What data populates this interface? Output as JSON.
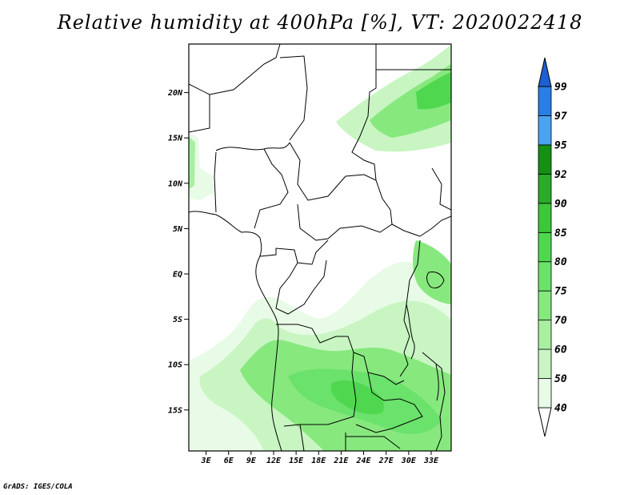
{
  "title": "Relative humidity at 400hPa [%], VT: 2020022418",
  "credit": "GrADS: IGES/COLA",
  "map": {
    "lat_labels": [
      {
        "lat": 20,
        "label": "20N"
      },
      {
        "lat": 15,
        "label": "15N"
      },
      {
        "lat": 10,
        "label": "10N"
      },
      {
        "lat": 5,
        "label": "5N"
      },
      {
        "lat": 0,
        "label": "EQ"
      },
      {
        "lat": -5,
        "label": "5S"
      },
      {
        "lat": -10,
        "label": "10S"
      },
      {
        "lat": -15,
        "label": "15S"
      }
    ],
    "lon_labels": [
      {
        "lon": 3,
        "label": "3E"
      },
      {
        "lon": 6,
        "label": "6E"
      },
      {
        "lon": 9,
        "label": "9E"
      },
      {
        "lon": 12,
        "label": "12E"
      },
      {
        "lon": 15,
        "label": "15E"
      },
      {
        "lon": 18,
        "label": "18E"
      },
      {
        "lon": 21,
        "label": "21E"
      },
      {
        "lon": 24,
        "label": "24E"
      },
      {
        "lon": 27,
        "label": "27E"
      },
      {
        "lon": 30,
        "label": "30E"
      },
      {
        "lon": 33,
        "label": "33E"
      }
    ]
  },
  "colorbar": {
    "levels": [
      "40",
      "50",
      "60",
      "70",
      "75",
      "80",
      "85",
      "90",
      "92",
      "95",
      "97",
      "99"
    ],
    "colors": [
      "#ffffff",
      "#e8fbe6",
      "#c8f5c2",
      "#a9efa0",
      "#87e87e",
      "#6ae26b",
      "#4fd84f",
      "#3bc83b",
      "#2aab2a",
      "#159015",
      "#4aa3f0",
      "#2a7ee6",
      "#1e60d2"
    ]
  }
}
